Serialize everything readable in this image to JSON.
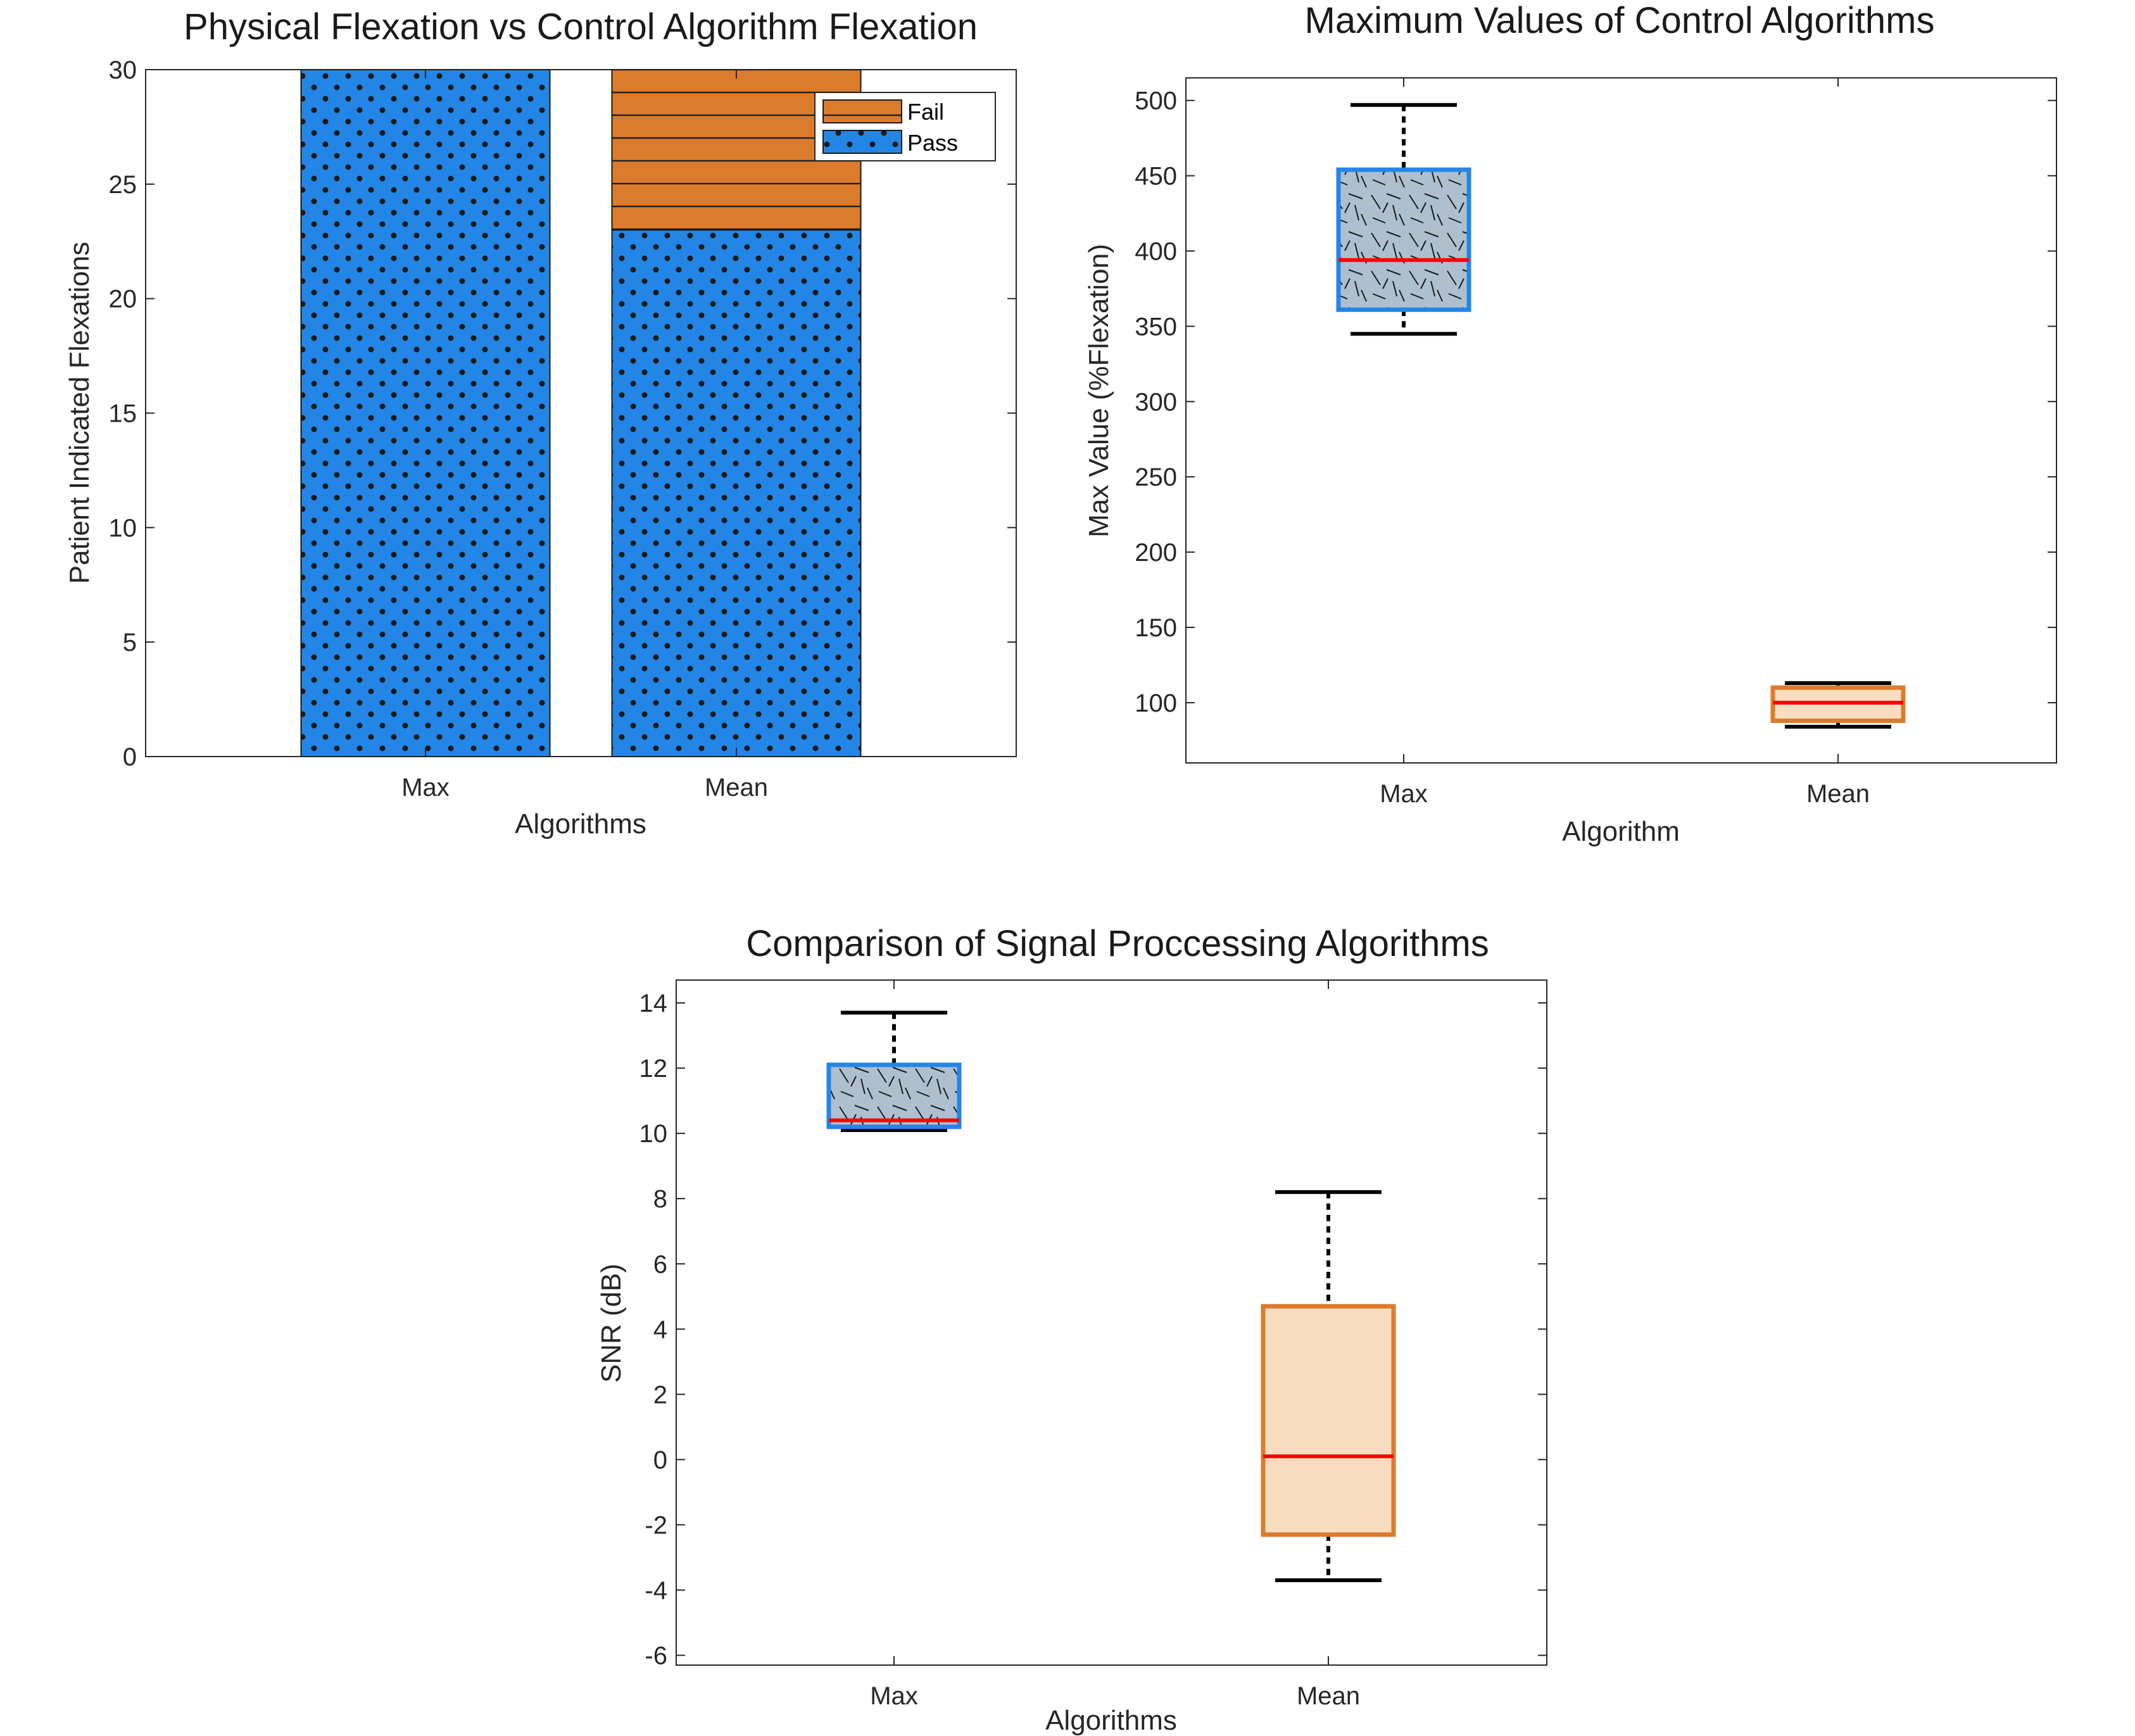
{
  "colors": {
    "pass": "#2386e6",
    "fail": "#dd7b2c",
    "max_box_fill": "#aebfd0",
    "max_box_edge": "#2386e6",
    "mean_box_fill": "#f8ddc1",
    "mean_box_edge": "#dd7b2c",
    "median": "#ff0000",
    "whisker": "#000000"
  },
  "chart_data": [
    {
      "type": "bar",
      "stacked": true,
      "title": "Physical Flexation vs Control Algorithm Flexation",
      "xlabel": "Algorithms",
      "ylabel": "Patient Indicated Flexations",
      "categories": [
        "Max",
        "Mean"
      ],
      "ylim": [
        0,
        30
      ],
      "yticks": [
        0,
        5,
        10,
        15,
        20,
        25,
        30
      ],
      "series": [
        {
          "name": "Pass",
          "values": [
            30,
            23
          ],
          "pattern": "dots",
          "color_key": "pass"
        },
        {
          "name": "Fail",
          "values": [
            0,
            7
          ],
          "pattern": "horizontal-lines",
          "color_key": "fail"
        }
      ],
      "legend": {
        "placement": "top-right",
        "entries": [
          "Fail",
          "Pass"
        ]
      },
      "grid": false
    },
    {
      "type": "box",
      "title": "Maximum Values of Control Algorithms",
      "xlabel": "Algorithm",
      "ylabel": "Max Value (%Flexation)",
      "categories": [
        "Max",
        "Mean"
      ],
      "ylim": [
        60,
        515
      ],
      "yticks": [
        100,
        150,
        200,
        250,
        300,
        350,
        400,
        450,
        500
      ],
      "boxes": [
        {
          "name": "Max",
          "whisker_low": 345,
          "q1": 361,
          "median": 394,
          "q3": 454,
          "whisker_high": 497
        },
        {
          "name": "Mean",
          "whisker_low": 84,
          "q1": 88,
          "median": 100,
          "q3": 110,
          "whisker_high": 113
        }
      ],
      "grid": false
    },
    {
      "type": "box",
      "title": "Comparison of Signal Proccessing Algorithms",
      "xlabel": "Algorithms",
      "ylabel": "SNR (dB)",
      "categories": [
        "Max",
        "Mean"
      ],
      "ylim": [
        -6.3,
        14.7
      ],
      "yticks": [
        -6,
        -4,
        -2,
        0,
        2,
        4,
        6,
        8,
        10,
        12,
        14
      ],
      "boxes": [
        {
          "name": "Max",
          "whisker_low": 10.1,
          "q1": 10.2,
          "median": 10.4,
          "q3": 12.1,
          "whisker_high": 13.7
        },
        {
          "name": "Mean",
          "whisker_low": -3.7,
          "q1": -2.3,
          "median": 0.1,
          "q3": 4.7,
          "whisker_high": 8.2
        }
      ],
      "grid": false
    }
  ]
}
